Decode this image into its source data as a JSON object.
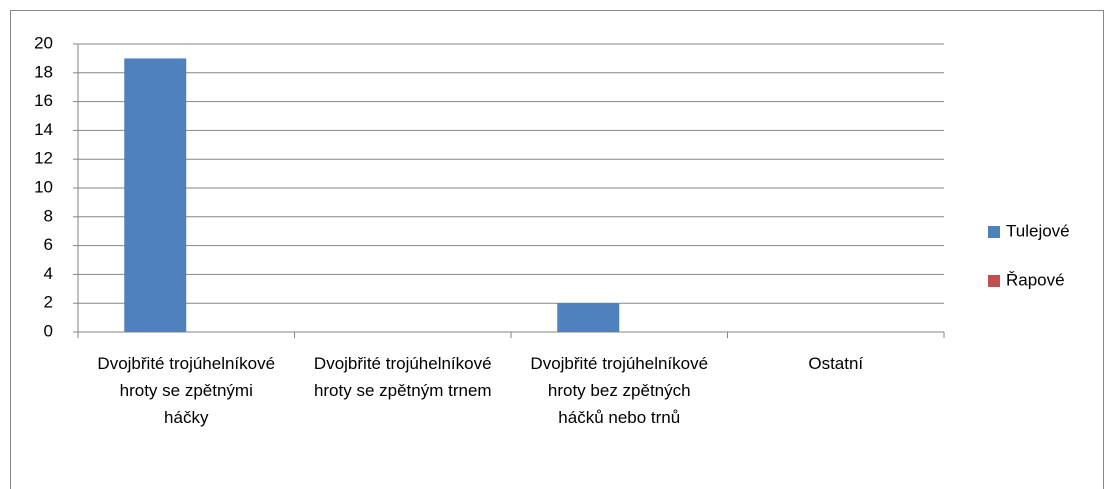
{
  "chart_data": {
    "type": "bar",
    "categories": [
      "Dvojbřité trojúhelníkové hroty se zpětnými háčky",
      "Dvojbřité trojúhelníkové hroty se zpětným trnem",
      "Dvojbřité trojúhelníkové hroty bez zpětných háčků nebo trnů",
      "Ostatní"
    ],
    "series": [
      {
        "name": "Tulejové",
        "color": "#4f81bd",
        "values": [
          19,
          0,
          2,
          0
        ]
      },
      {
        "name": "Řapové",
        "color": "#c0504d",
        "values": [
          0,
          0,
          0,
          0
        ]
      }
    ],
    "ylim": [
      0,
      20
    ],
    "yticks": [
      0,
      2,
      4,
      6,
      8,
      10,
      12,
      14,
      16,
      18,
      20
    ],
    "grid": true,
    "legend": "right"
  }
}
